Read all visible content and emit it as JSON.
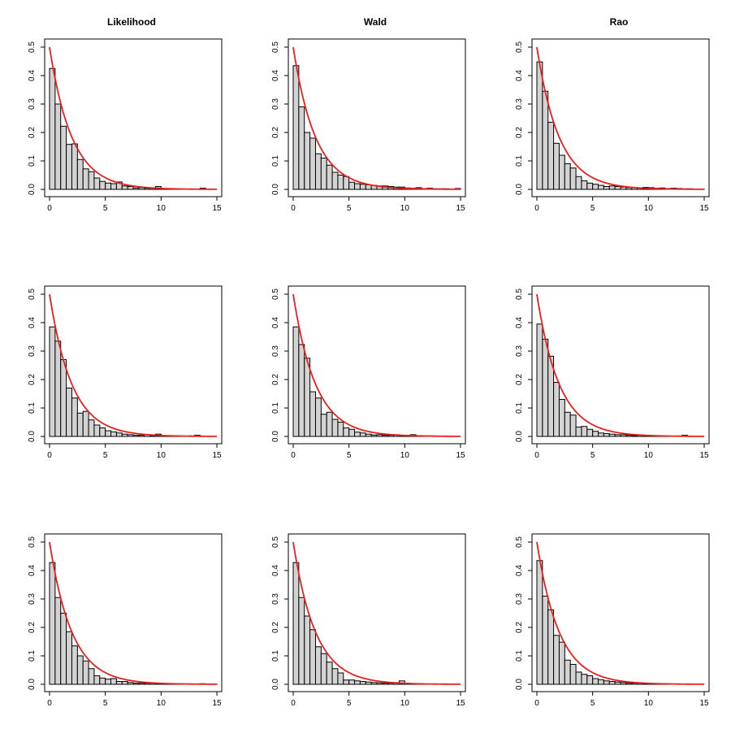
{
  "column_titles": [
    "Likelihood",
    "Wald",
    "Rao"
  ],
  "chart_data": [
    {
      "type": "bar",
      "title": "Likelihood",
      "bin_width": 0.5,
      "xlim": [
        0,
        15.5
      ],
      "ylim": [
        0,
        0.52
      ],
      "xticks": [
        0,
        5,
        10,
        15
      ],
      "yticks": [
        0.0,
        0.1,
        0.2,
        0.3,
        0.4,
        0.5
      ],
      "density_curve": {
        "formula": "0.5*exp(-0.5*x)",
        "color": "#e8201c"
      },
      "values": [
        0.425,
        0.3,
        0.222,
        0.158,
        0.16,
        0.105,
        0.072,
        0.062,
        0.04,
        0.028,
        0.022,
        0.02,
        0.026,
        0.012,
        0.01,
        0.005,
        0.006,
        0.004,
        0.004,
        0.01,
        0.002,
        0.001,
        0.001,
        0.001,
        0.001,
        0.001,
        0.001,
        0.004,
        0,
        0,
        0
      ]
    },
    {
      "type": "bar",
      "title": "Wald",
      "bin_width": 0.5,
      "xlim": [
        0,
        15.5
      ],
      "ylim": [
        0,
        0.52
      ],
      "xticks": [
        0,
        5,
        10,
        15
      ],
      "yticks": [
        0.0,
        0.1,
        0.2,
        0.3,
        0.4,
        0.5
      ],
      "density_curve": {
        "formula": "0.5*exp(-0.5*x)",
        "color": "#e8201c"
      },
      "values": [
        0.435,
        0.29,
        0.2,
        0.18,
        0.125,
        0.11,
        0.085,
        0.06,
        0.05,
        0.045,
        0.025,
        0.02,
        0.018,
        0.016,
        0.014,
        0.012,
        0.012,
        0.01,
        0.008,
        0.008,
        0.005,
        0.004,
        0.006,
        0.003,
        0.004,
        0.002,
        0.002,
        0.002,
        0.001,
        0.003,
        0
      ]
    },
    {
      "type": "bar",
      "title": "Rao",
      "bin_width": 0.5,
      "xlim": [
        0,
        15.5
      ],
      "ylim": [
        0,
        0.52
      ],
      "xticks": [
        0,
        5,
        10,
        15
      ],
      "yticks": [
        0.0,
        0.1,
        0.2,
        0.3,
        0.4,
        0.5
      ],
      "density_curve": {
        "formula": "0.5*exp(-0.5*x)",
        "color": "#e8201c"
      },
      "values": [
        0.448,
        0.345,
        0.236,
        0.162,
        0.12,
        0.09,
        0.075,
        0.045,
        0.03,
        0.022,
        0.018,
        0.014,
        0.01,
        0.012,
        0.01,
        0.008,
        0.006,
        0.006,
        0.005,
        0.007,
        0.006,
        0.004,
        0.005,
        0.003,
        0.004,
        0.003,
        0.002,
        0.002,
        0.001,
        0.001,
        0
      ]
    },
    {
      "type": "bar",
      "title": "",
      "bin_width": 0.5,
      "xlim": [
        0,
        15.5
      ],
      "ylim": [
        0,
        0.52
      ],
      "xticks": [
        0,
        5,
        10,
        15
      ],
      "yticks": [
        0.0,
        0.1,
        0.2,
        0.3,
        0.4,
        0.5
      ],
      "density_curve": {
        "formula": "0.5*exp(-0.5*x)",
        "color": "#e8201c"
      },
      "values": [
        0.385,
        0.335,
        0.27,
        0.17,
        0.135,
        0.082,
        0.088,
        0.058,
        0.04,
        0.03,
        0.02,
        0.016,
        0.012,
        0.008,
        0.006,
        0.004,
        0.004,
        0.006,
        0.003,
        0.008,
        0.002,
        0.002,
        0.001,
        0.001,
        0.001,
        0.002,
        0.004,
        0.001,
        0,
        0,
        0
      ]
    },
    {
      "type": "bar",
      "title": "",
      "bin_width": 0.5,
      "xlim": [
        0,
        15.5
      ],
      "ylim": [
        0,
        0.52
      ],
      "xticks": [
        0,
        5,
        10,
        15
      ],
      "yticks": [
        0.0,
        0.1,
        0.2,
        0.3,
        0.4,
        0.5
      ],
      "density_curve": {
        "formula": "0.5*exp(-0.5*x)",
        "color": "#e8201c"
      },
      "values": [
        0.385,
        0.323,
        0.275,
        0.157,
        0.135,
        0.078,
        0.085,
        0.06,
        0.05,
        0.03,
        0.025,
        0.015,
        0.012,
        0.008,
        0.005,
        0.006,
        0.004,
        0.004,
        0.006,
        0.003,
        0.004,
        0.006,
        0.003,
        0.002,
        0.002,
        0.001,
        0.001,
        0.001,
        0,
        0,
        0
      ]
    },
    {
      "type": "bar",
      "title": "",
      "bin_width": 0.5,
      "xlim": [
        0,
        15.5
      ],
      "ylim": [
        0,
        0.52
      ],
      "xticks": [
        0,
        5,
        10,
        15
      ],
      "yticks": [
        0.0,
        0.1,
        0.2,
        0.3,
        0.4,
        0.5
      ],
      "density_curve": {
        "formula": "0.5*exp(-0.5*x)",
        "color": "#e8201c"
      },
      "values": [
        0.395,
        0.342,
        0.282,
        0.19,
        0.13,
        0.085,
        0.075,
        0.033,
        0.035,
        0.025,
        0.018,
        0.012,
        0.01,
        0.008,
        0.006,
        0.006,
        0.004,
        0.003,
        0.004,
        0.003,
        0.003,
        0.002,
        0.002,
        0.001,
        0.001,
        0.001,
        0.004,
        0.001,
        0,
        0,
        0
      ]
    },
    {
      "type": "bar",
      "title": "",
      "bin_width": 0.5,
      "xlim": [
        0,
        15.5
      ],
      "ylim": [
        0,
        0.52
      ],
      "xticks": [
        0,
        5,
        10,
        15
      ],
      "yticks": [
        0.0,
        0.1,
        0.2,
        0.3,
        0.4,
        0.5
      ],
      "density_curve": {
        "formula": "0.5*exp(-0.5*x)",
        "color": "#e8201c"
      },
      "values": [
        0.428,
        0.305,
        0.25,
        0.185,
        0.135,
        0.1,
        0.082,
        0.055,
        0.03,
        0.022,
        0.018,
        0.02,
        0.01,
        0.01,
        0.006,
        0.004,
        0.004,
        0.004,
        0.004,
        0.002,
        0.003,
        0.002,
        0.001,
        0.001,
        0.001,
        0.001,
        0.001,
        0.002,
        0.001,
        0.001,
        0
      ]
    },
    {
      "type": "bar",
      "title": "",
      "bin_width": 0.5,
      "xlim": [
        0,
        15.5
      ],
      "ylim": [
        0,
        0.52
      ],
      "xticks": [
        0,
        5,
        10,
        15
      ],
      "yticks": [
        0.0,
        0.1,
        0.2,
        0.3,
        0.4,
        0.5
      ],
      "density_curve": {
        "formula": "0.5*exp(-0.5*x)",
        "color": "#e8201c"
      },
      "values": [
        0.428,
        0.305,
        0.24,
        0.192,
        0.132,
        0.108,
        0.078,
        0.055,
        0.04,
        0.015,
        0.015,
        0.012,
        0.01,
        0.008,
        0.006,
        0.005,
        0.004,
        0.004,
        0.006,
        0.012,
        0.004,
        0.002,
        0.001,
        0.001,
        0.001,
        0.001,
        0.001,
        0.001,
        0,
        0,
        0
      ]
    },
    {
      "type": "bar",
      "title": "",
      "bin_width": 0.5,
      "xlim": [
        0,
        15.5
      ],
      "ylim": [
        0,
        0.52
      ],
      "xticks": [
        0,
        5,
        10,
        15
      ],
      "yticks": [
        0.0,
        0.1,
        0.2,
        0.3,
        0.4,
        0.5
      ],
      "density_curve": {
        "formula": "0.5*exp(-0.5*x)",
        "color": "#e8201c"
      },
      "values": [
        0.435,
        0.31,
        0.262,
        0.172,
        0.148,
        0.085,
        0.07,
        0.043,
        0.035,
        0.03,
        0.02,
        0.016,
        0.012,
        0.01,
        0.008,
        0.006,
        0.004,
        0.004,
        0.004,
        0.003,
        0.002,
        0.002,
        0.001,
        0.001,
        0.001,
        0.001,
        0.001,
        0.001,
        0,
        0,
        0
      ]
    }
  ]
}
